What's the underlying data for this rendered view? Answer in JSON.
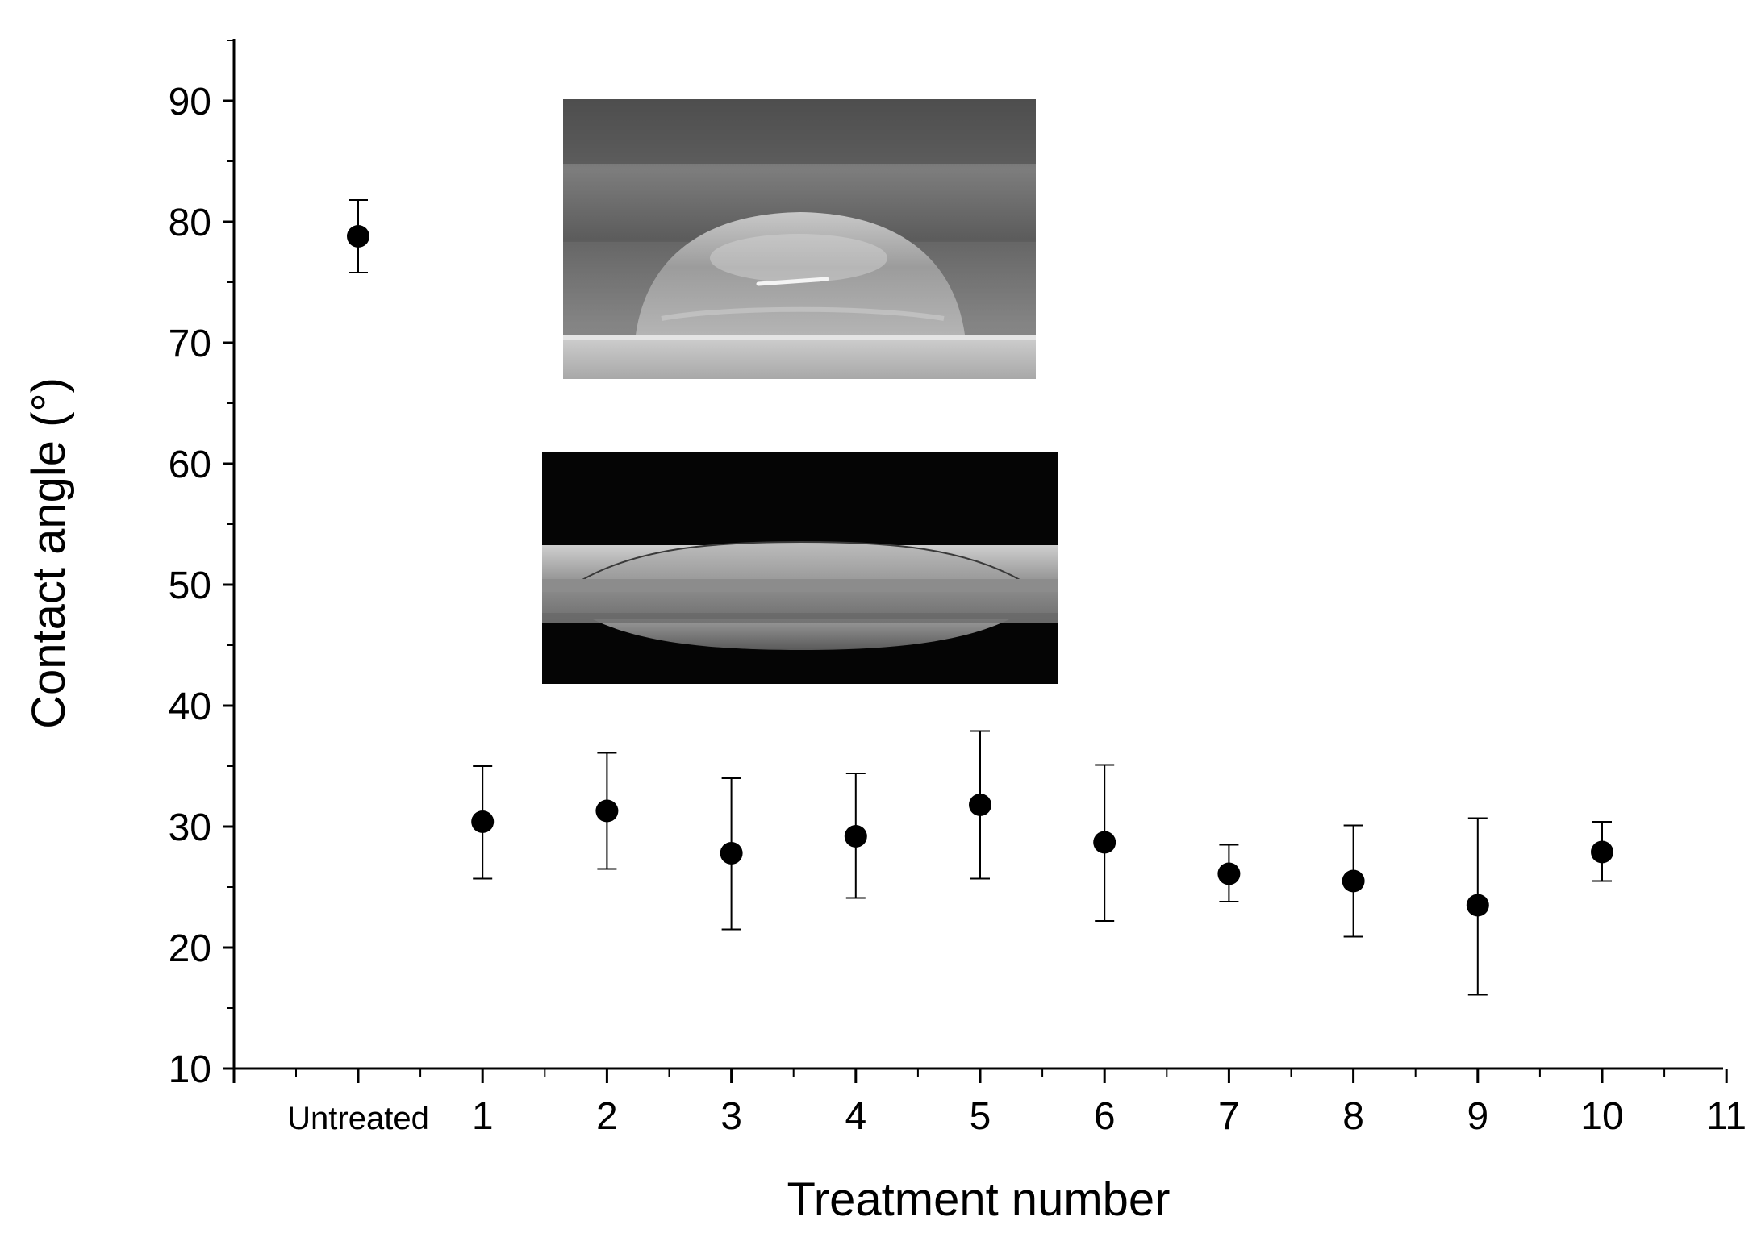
{
  "chart_data": {
    "type": "scatter",
    "xlabel": "Treatment number",
    "ylabel": "Contact angle (°)",
    "xlim": [
      -1,
      11
    ],
    "ylim": [
      10,
      95
    ],
    "x_ticks": [
      {
        "value": 0,
        "label": "Untreated"
      },
      {
        "value": 1,
        "label": "1"
      },
      {
        "value": 2,
        "label": "2"
      },
      {
        "value": 3,
        "label": "3"
      },
      {
        "value": 4,
        "label": "4"
      },
      {
        "value": 5,
        "label": "5"
      },
      {
        "value": 6,
        "label": "6"
      },
      {
        "value": 7,
        "label": "7"
      },
      {
        "value": 8,
        "label": "8"
      },
      {
        "value": 9,
        "label": "9"
      },
      {
        "value": 10,
        "label": "10"
      },
      {
        "value": 11,
        "label": "11"
      }
    ],
    "y_ticks": [
      10,
      20,
      30,
      40,
      50,
      60,
      70,
      80,
      90
    ],
    "grid": false,
    "marker_color": "#000000",
    "points": [
      {
        "x": 0,
        "y": 78.8,
        "y_low": 75.8,
        "y_high": 81.8
      },
      {
        "x": 1,
        "y": 30.4,
        "y_low": 25.7,
        "y_high": 35.0
      },
      {
        "x": 2,
        "y": 31.3,
        "y_low": 26.5,
        "y_high": 36.1
      },
      {
        "x": 3,
        "y": 27.8,
        "y_low": 21.5,
        "y_high": 34.0
      },
      {
        "x": 4,
        "y": 29.2,
        "y_low": 24.1,
        "y_high": 34.4
      },
      {
        "x": 5,
        "y": 31.8,
        "y_low": 25.7,
        "y_high": 37.9
      },
      {
        "x": 6,
        "y": 28.7,
        "y_low": 22.2,
        "y_high": 35.1
      },
      {
        "x": 7,
        "y": 26.1,
        "y_low": 23.8,
        "y_high": 28.5
      },
      {
        "x": 8,
        "y": 25.5,
        "y_low": 20.9,
        "y_high": 30.1
      },
      {
        "x": 9,
        "y": 23.5,
        "y_low": 16.1,
        "y_high": 30.7
      },
      {
        "x": 10,
        "y": 27.9,
        "y_low": 25.5,
        "y_high": 30.4
      }
    ],
    "insets": [
      {
        "name": "droplet-untreated",
        "description_hidden": true
      },
      {
        "name": "droplet-treated",
        "description_hidden": true
      }
    ]
  }
}
